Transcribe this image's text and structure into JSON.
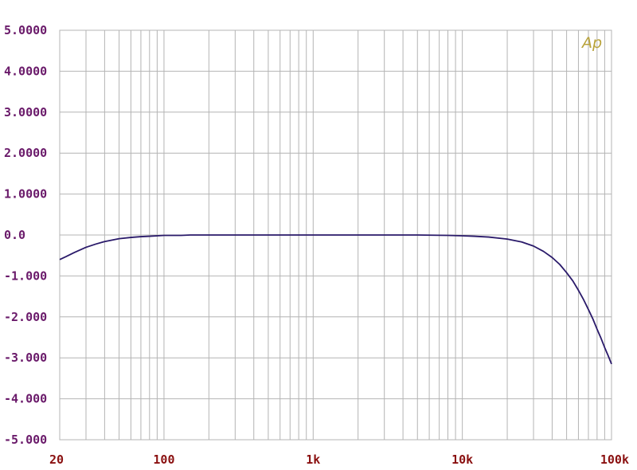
{
  "chart_data": {
    "type": "line",
    "title": "",
    "xlabel": "",
    "ylabel": "",
    "x_scale": "log",
    "xlim": [
      20,
      100000
    ],
    "ylim": [
      -5,
      5
    ],
    "grid": true,
    "x_tick_values": [
      20,
      100,
      1000,
      10000,
      100000
    ],
    "x_tick_labels": [
      "20",
      "100",
      "1k",
      "10k",
      "100k"
    ],
    "y_tick_values": [
      5,
      4,
      3,
      2,
      1,
      0,
      -1,
      -2,
      -3,
      -4,
      -5
    ],
    "y_tick_labels": [
      "5.0000",
      "4.0000",
      "3.0000",
      "2.0000",
      "1.0000",
      "0.0",
      "-1.000",
      "-2.000",
      "-3.000",
      "-4.000",
      "-5.000"
    ],
    "logo_text": "Ap",
    "colors": {
      "line": "#2a1a6a",
      "grid": "#b4b4b4",
      "ytick": "#6a1a6a",
      "xtick": "#8a1010",
      "logo": "#b8a23a"
    },
    "series": [
      {
        "x": [
          20,
          22,
          25,
          30,
          35,
          40,
          50,
          60,
          70,
          80,
          100,
          130,
          150,
          200,
          300,
          500,
          1000,
          2000,
          5000,
          8000,
          10000,
          12000,
          15000,
          20000,
          25000,
          30000,
          35000,
          40000,
          45000,
          50000,
          55000,
          60000,
          65000,
          70000,
          75000,
          80000,
          85000,
          90000,
          95000,
          100000
        ],
        "values": [
          -0.6,
          -0.53,
          -0.43,
          -0.3,
          -0.22,
          -0.16,
          -0.09,
          -0.06,
          -0.04,
          -0.03,
          -0.01,
          -0.01,
          0,
          0,
          0,
          0,
          0,
          0,
          0,
          -0.01,
          -0.02,
          -0.03,
          -0.05,
          -0.1,
          -0.17,
          -0.27,
          -0.4,
          -0.55,
          -0.72,
          -0.92,
          -1.12,
          -1.35,
          -1.58,
          -1.82,
          -2.05,
          -2.3,
          -2.52,
          -2.75,
          -2.95,
          -3.15
        ]
      }
    ]
  }
}
